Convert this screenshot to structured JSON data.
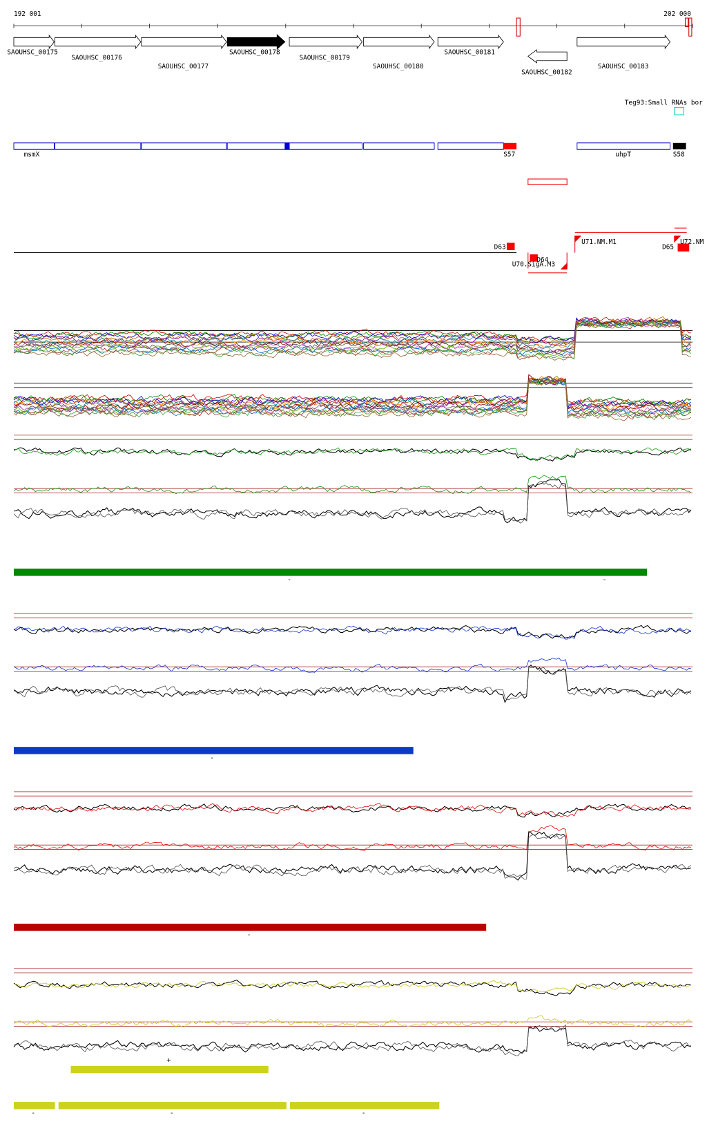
{
  "ruler": {
    "start": "192 001",
    "end": "202 000"
  },
  "genes": [
    "SAOUHSC_00175",
    "SAOUHSC_00176",
    "SAOUHSC_00177",
    "SAOUHSC_00178",
    "SAOUHSC_00179",
    "SAOUHSC_00180",
    "SAOUHSC_00181",
    "SAOUHSC_00182",
    "SAOUHSC_00183"
  ],
  "track_note": "Teg93:Small RNAs bor",
  "features": [
    "msmX",
    "S57",
    "uhpT",
    "S58"
  ],
  "regulation": [
    "D63",
    "D64",
    "U70.SigA.M3",
    "U71.NM.M1",
    "D65",
    "U72.NM"
  ],
  "strand_marks": {
    "green": [
      "-",
      "-"
    ],
    "blue": [
      "-"
    ],
    "red": [
      "-"
    ],
    "yellow_top": [
      "+"
    ],
    "yellow_bottom": [
      "-",
      "-",
      "-"
    ]
  }
}
